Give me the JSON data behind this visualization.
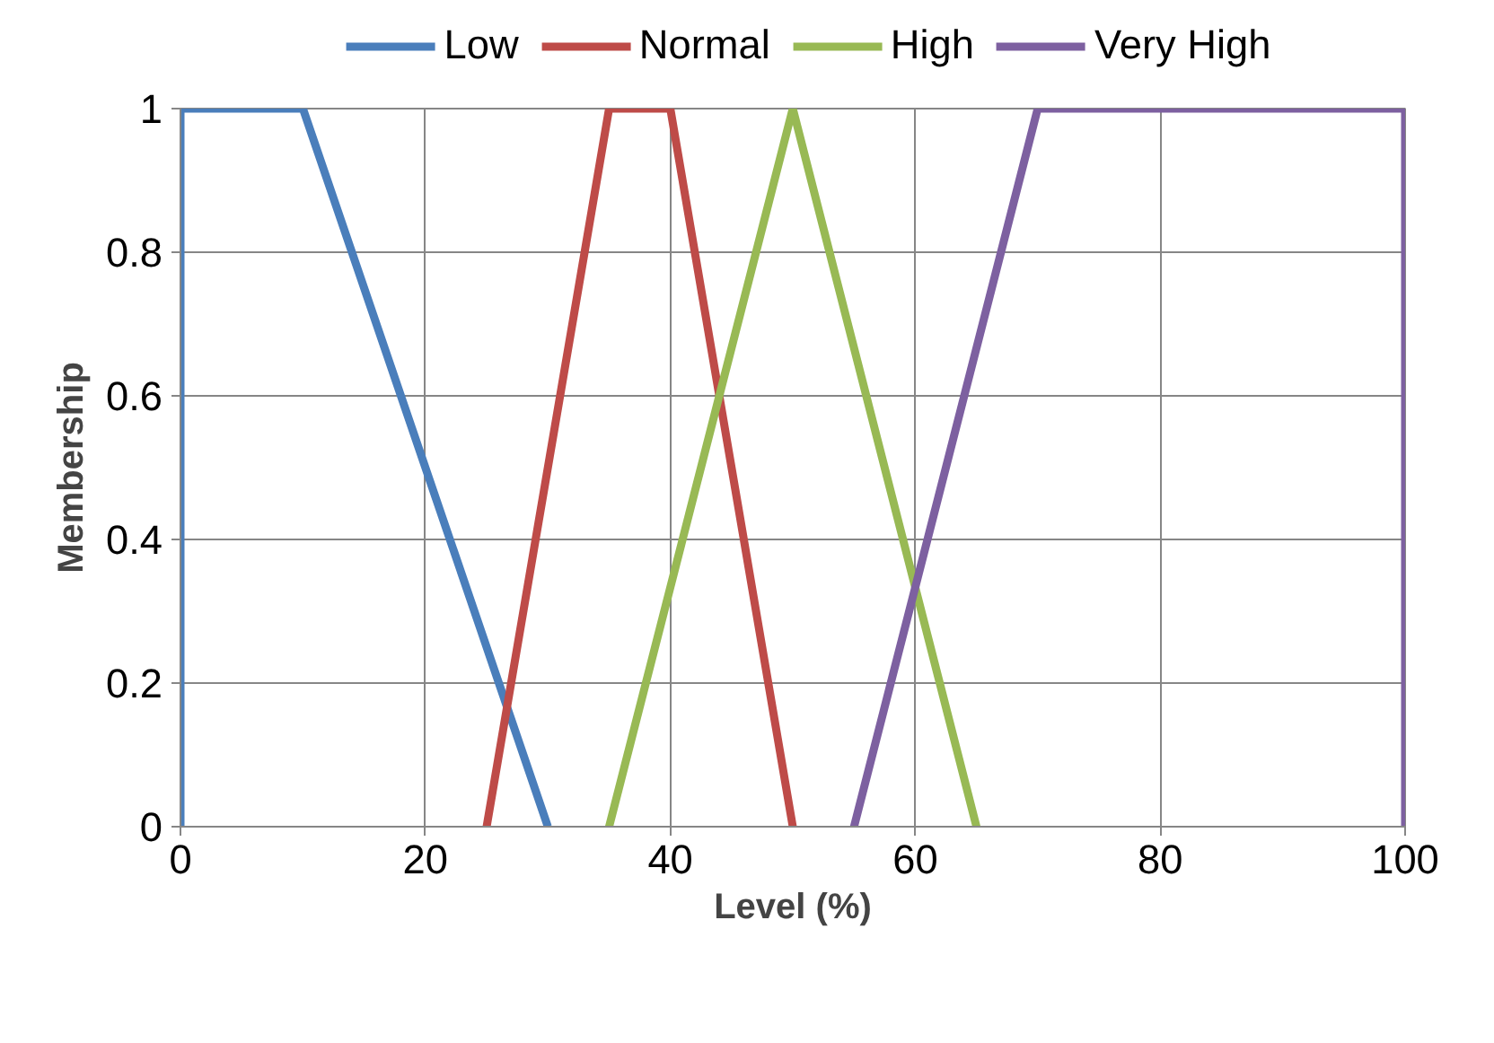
{
  "chart_data": {
    "type": "line",
    "xlabel": "Level (%)",
    "ylabel": "Membership",
    "xlim": [
      0,
      100
    ],
    "xticks": [
      0,
      20,
      40,
      60,
      80,
      100
    ],
    "ylim": [
      0,
      1
    ],
    "yticks": [
      0,
      0.2,
      0.4,
      0.6,
      0.8,
      1
    ],
    "grid": true,
    "legend": "top",
    "marker": "none",
    "line_style": "solid",
    "series": [
      {
        "name": "Low",
        "color": "#4a7ebb",
        "x": [
          0,
          0,
          10,
          30
        ],
        "values": [
          0,
          1,
          1,
          0
        ]
      },
      {
        "name": "Normal",
        "color": "#be4b48",
        "x": [
          25,
          35,
          40,
          50
        ],
        "values": [
          0,
          1,
          1,
          0
        ]
      },
      {
        "name": "High",
        "color": "#98b954",
        "x": [
          35,
          50,
          65
        ],
        "values": [
          0,
          1,
          0
        ]
      },
      {
        "name": "Very High",
        "color": "#7d60a0",
        "x": [
          55,
          70,
          100,
          100
        ],
        "values": [
          0,
          1,
          1,
          0
        ]
      }
    ]
  }
}
